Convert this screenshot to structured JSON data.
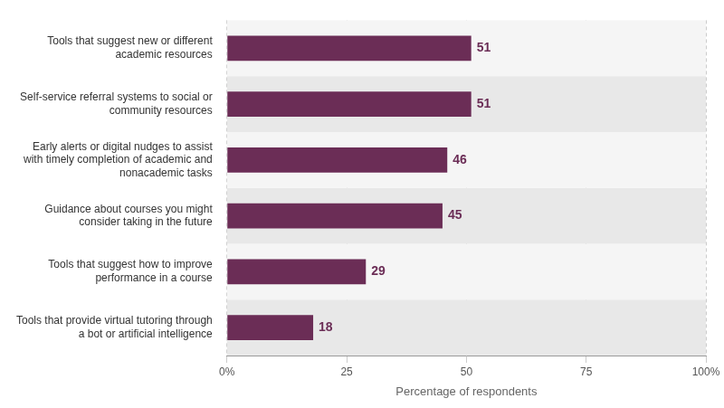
{
  "chart_data": {
    "type": "bar",
    "orientation": "horizontal",
    "categories": [
      "Tools that provide virtual tutoring through\na bot or artificial intelligence",
      "Tools that suggest how to improve\nperformance in a course",
      "Guidance about courses you might\nconsider taking in the future",
      "Early alerts or digital nudges to assist\nwith timely completion of academic and\nnonacademic tasks",
      "Self-service referral systems to social or\ncommunity resources",
      "Tools that suggest new or different\nacademic resources"
    ],
    "values": [
      18,
      29,
      45,
      46,
      51,
      51
    ],
    "color": "#6B2D56",
    "xlabel": "Percentage of respondents",
    "xlim": [
      0,
      100
    ],
    "xticks": [
      {
        "value": 0,
        "label": "0%"
      },
      25,
      50,
      75,
      {
        "value": 100,
        "label": "100%"
      }
    ],
    "grid": true,
    "data_labels": true
  }
}
